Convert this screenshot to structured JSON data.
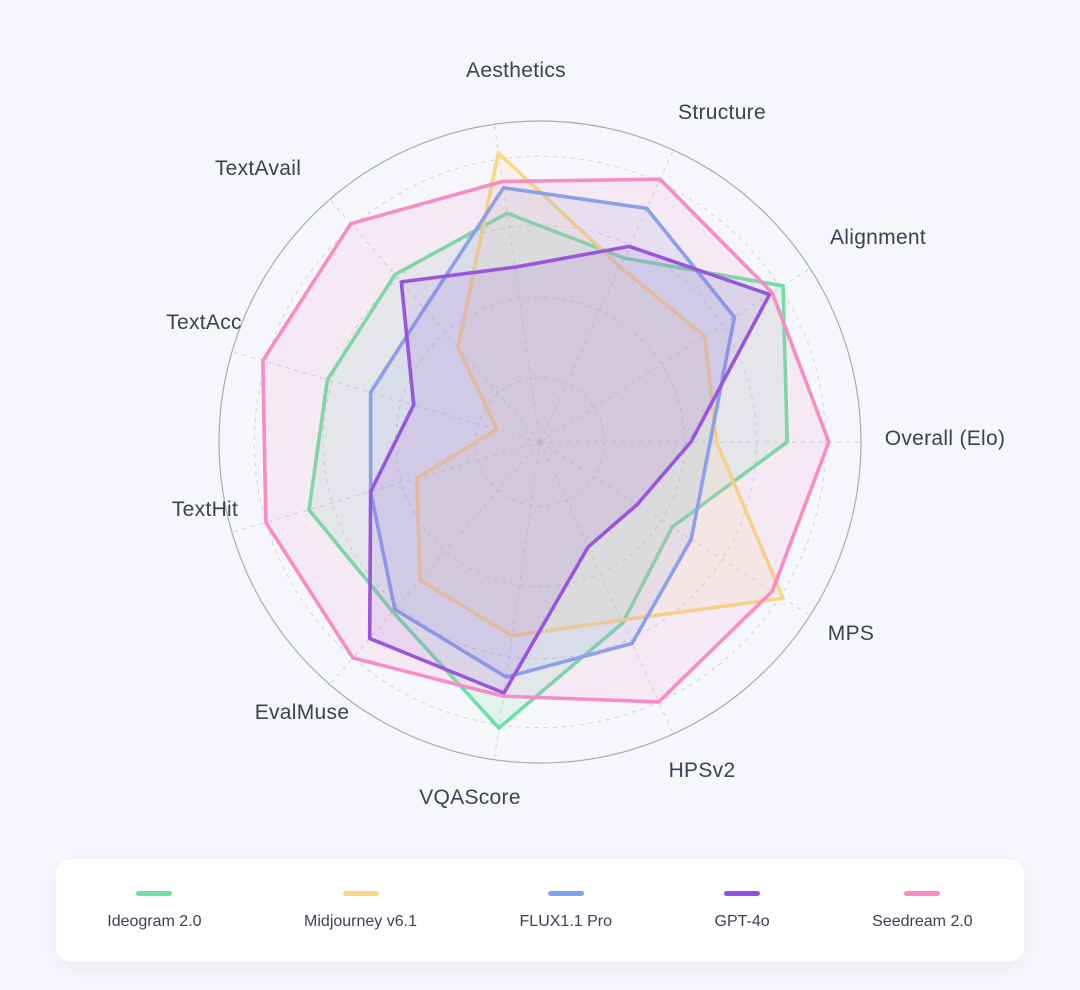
{
  "page": {
    "background": "#F5F7FB",
    "text_color": "#3C4254"
  },
  "chart_data": {
    "type": "radar",
    "title": "",
    "categories": [
      "Aesthetics",
      "Structure",
      "Alignment",
      "Overall (Elo)",
      "MPS",
      "HPSv2",
      "VQAScore",
      "EvalMuse",
      "TextHit",
      "TextAcc",
      "TextAvail"
    ],
    "series": [
      {
        "name": "Ideogram 2.0",
        "color": "#6FE0A4",
        "values": [
          72,
          63,
          90,
          77,
          49,
          62,
          90,
          70,
          75,
          69,
          69
        ]
      },
      {
        "name": "Midjourney v6.1",
        "color": "#F8D884",
        "values": [
          91,
          60,
          61,
          55,
          90,
          61,
          61,
          57,
          40,
          14,
          39
        ]
      },
      {
        "name": "FLUX1.1 Pro",
        "color": "#7CA3F0",
        "values": [
          80,
          80,
          72,
          53,
          56,
          69,
          74,
          69,
          55,
          55,
          55
        ]
      },
      {
        "name": "GPT-4o",
        "color": "#8C4FE2",
        "values": [
          55,
          67,
          85,
          47,
          36,
          36,
          79,
          81,
          55,
          41,
          66
        ]
      },
      {
        "name": "Seedream 2.0",
        "color": "#F88CC5",
        "values": [
          82,
          90,
          86,
          90,
          86,
          89,
          80,
          89,
          89,
          90,
          90
        ]
      }
    ],
    "rmax": 100,
    "axis_start_deg": 98.18,
    "direction": "clockwise",
    "grid": "dashed concentric circles and spokes, solid outer circle",
    "legend_position": "bottom",
    "grid_color": "#CDD1DB",
    "outer_circle_color": "#A6ACB8",
    "fill_opacity": 0.13
  }
}
